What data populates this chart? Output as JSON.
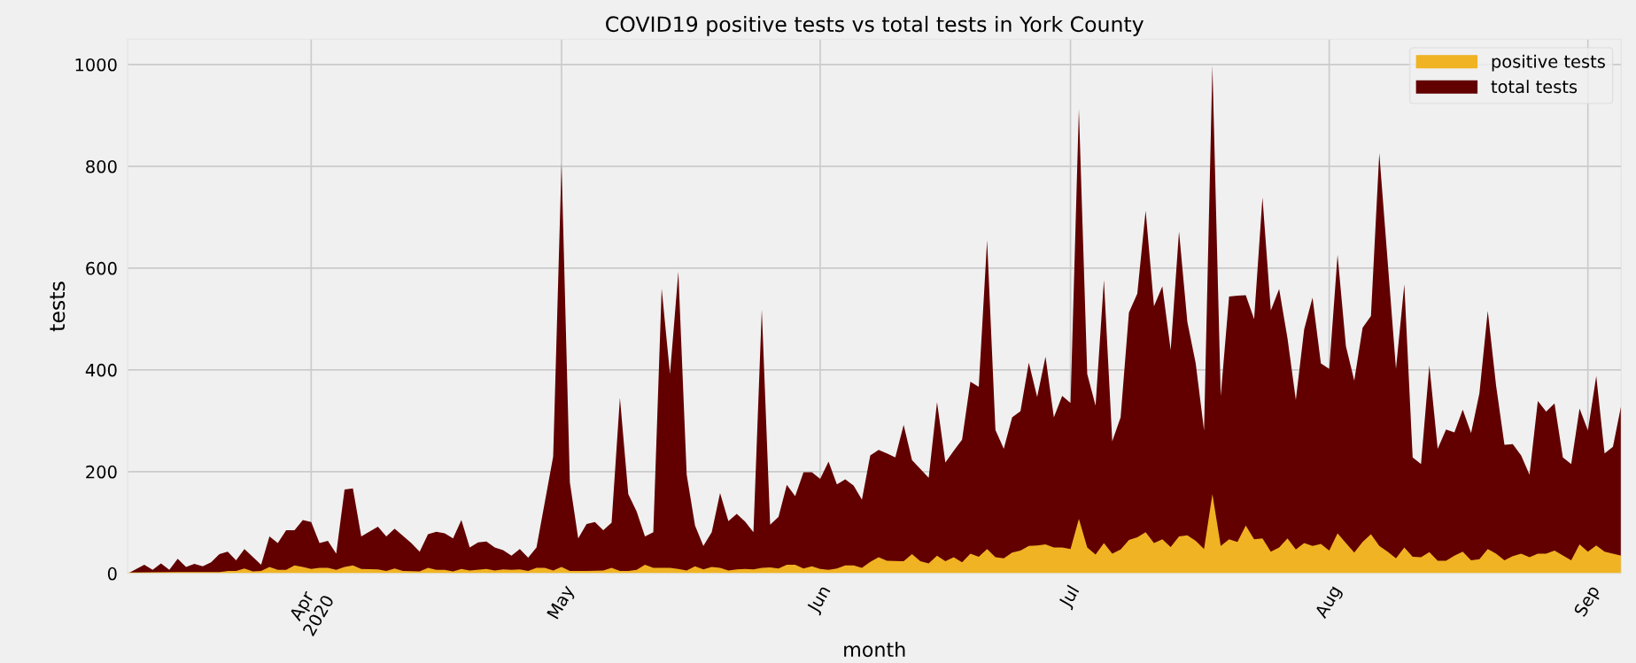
{
  "chart_data": {
    "type": "area",
    "title": "COVID19 positive tests vs total tests in York County",
    "xlabel": "month",
    "ylabel": "tests",
    "xlim": [
      "2020-03-10",
      "2020-09-05"
    ],
    "ylim": [
      0,
      1050
    ],
    "yticks": [
      0,
      200,
      400,
      600,
      800,
      1000
    ],
    "xticks": [
      {
        "value": "2020-04-01",
        "label": "Apr\n2020"
      },
      {
        "value": "2020-05-01",
        "label": "May"
      },
      {
        "value": "2020-06-01",
        "label": "Jun"
      },
      {
        "value": "2020-07-01",
        "label": "Jul"
      },
      {
        "value": "2020-08-01",
        "label": "Aug"
      },
      {
        "value": "2020-09-01",
        "label": "Sep"
      }
    ],
    "grid": true,
    "legend": "top right",
    "series": [
      {
        "name": "total tests",
        "color": "#620000",
        "x": [
          "2020-03-10",
          "2020-03-12",
          "2020-03-13",
          "2020-03-14",
          "2020-03-15",
          "2020-03-16",
          "2020-03-17",
          "2020-03-18",
          "2020-03-19",
          "2020-03-20",
          "2020-03-21",
          "2020-03-22",
          "2020-03-23",
          "2020-03-24",
          "2020-03-26",
          "2020-03-27",
          "2020-03-28",
          "2020-03-29",
          "2020-03-30",
          "2020-03-31",
          "2020-04-01",
          "2020-04-02",
          "2020-04-03",
          "2020-04-04",
          "2020-04-05",
          "2020-04-06",
          "2020-04-07",
          "2020-04-09",
          "2020-04-10",
          "2020-04-11",
          "2020-04-13",
          "2020-04-14",
          "2020-04-15",
          "2020-04-16",
          "2020-04-17",
          "2020-04-18",
          "2020-04-19",
          "2020-04-20",
          "2020-04-21",
          "2020-04-22",
          "2020-04-23",
          "2020-04-24",
          "2020-04-25",
          "2020-04-26",
          "2020-04-27",
          "2020-04-28",
          "2020-04-30",
          "2020-05-01",
          "2020-05-02",
          "2020-05-03",
          "2020-05-04",
          "2020-05-05",
          "2020-05-06",
          "2020-05-07",
          "2020-05-08",
          "2020-05-09",
          "2020-05-10",
          "2020-05-11",
          "2020-05-12",
          "2020-05-13",
          "2020-05-14",
          "2020-05-15",
          "2020-05-16",
          "2020-05-17",
          "2020-05-18",
          "2020-05-19",
          "2020-05-20",
          "2020-05-21",
          "2020-05-22",
          "2020-05-23",
          "2020-05-24",
          "2020-05-25",
          "2020-05-26",
          "2020-05-27",
          "2020-05-28",
          "2020-05-29",
          "2020-05-30",
          "2020-05-31",
          "2020-06-01",
          "2020-06-02",
          "2020-06-03",
          "2020-06-04",
          "2020-06-05",
          "2020-06-06",
          "2020-06-07",
          "2020-06-08",
          "2020-06-09",
          "2020-06-10",
          "2020-06-11",
          "2020-06-12",
          "2020-06-14",
          "2020-06-15",
          "2020-06-16",
          "2020-06-17",
          "2020-06-18",
          "2020-06-19",
          "2020-06-20",
          "2020-06-21",
          "2020-06-22",
          "2020-06-23",
          "2020-06-24",
          "2020-06-25",
          "2020-06-26",
          "2020-06-27",
          "2020-06-28",
          "2020-06-29",
          "2020-06-30",
          "2020-07-01",
          "2020-07-02",
          "2020-07-03",
          "2020-07-04",
          "2020-07-05",
          "2020-07-06",
          "2020-07-07",
          "2020-07-08",
          "2020-07-09",
          "2020-07-10",
          "2020-07-11",
          "2020-07-12",
          "2020-07-13",
          "2020-07-14",
          "2020-07-15",
          "2020-07-16",
          "2020-07-17",
          "2020-07-18",
          "2020-07-19",
          "2020-07-20",
          "2020-07-21",
          "2020-07-22",
          "2020-07-23",
          "2020-07-24",
          "2020-07-25",
          "2020-07-26",
          "2020-07-27",
          "2020-07-28",
          "2020-07-29",
          "2020-07-30",
          "2020-07-31",
          "2020-08-01",
          "2020-08-02",
          "2020-08-03",
          "2020-08-04",
          "2020-08-05",
          "2020-08-06",
          "2020-08-07",
          "2020-08-09",
          "2020-08-10",
          "2020-08-11",
          "2020-08-12",
          "2020-08-13",
          "2020-08-14",
          "2020-08-15",
          "2020-08-16",
          "2020-08-17",
          "2020-08-18",
          "2020-08-19",
          "2020-08-20",
          "2020-08-21",
          "2020-08-22",
          "2020-08-23",
          "2020-08-24",
          "2020-08-25",
          "2020-08-26",
          "2020-08-27",
          "2020-08-28",
          "2020-08-29",
          "2020-08-30",
          "2020-08-31",
          "2020-09-01",
          "2020-09-02",
          "2020-09-03",
          "2020-09-04",
          "2020-09-05"
        ],
        "values": [
          0,
          17,
          7,
          20,
          7,
          29,
          13,
          19,
          14,
          22,
          38,
          43,
          26,
          48,
          17,
          73,
          60,
          85,
          85,
          105,
          101,
          60,
          64,
          39,
          165,
          167,
          73,
          92,
          73,
          88,
          60,
          43,
          77,
          82,
          79,
          69,
          105,
          51,
          61,
          63,
          51,
          46,
          35,
          48,
          31,
          51,
          230,
          806,
          179,
          69,
          97,
          101,
          85,
          100,
          345,
          156,
          122,
          73,
          81,
          560,
          392,
          593,
          194,
          94,
          54,
          81,
          158,
          103,
          117,
          102,
          81,
          519,
          96,
          111,
          174,
          152,
          199,
          199,
          186,
          220,
          175,
          185,
          173,
          145,
          232,
          243,
          236,
          228,
          292,
          223,
          188,
          337,
          218,
          241,
          263,
          377,
          367,
          655,
          282,
          245,
          307,
          319,
          414,
          347,
          426,
          307,
          349,
          335,
          913,
          392,
          330,
          577,
          260,
          307,
          513,
          550,
          713,
          525,
          564,
          439,
          672,
          494,
          413,
          281,
          998,
          349,
          544,
          546,
          547,
          500,
          739,
          517,
          559,
          462,
          341,
          480,
          542,
          413,
          402,
          626,
          447,
          379,
          483,
          506,
          826,
          402,
          568,
          228,
          215,
          409,
          245,
          283,
          277,
          322,
          276,
          354,
          516,
          369,
          253,
          254,
          232,
          194,
          339,
          318,
          334,
          228,
          215,
          324,
          281,
          388,
          236,
          249,
          331
        ]
      },
      {
        "name": "positive tests",
        "color": "#f0b323",
        "x": [
          "2020-03-10",
          "2020-03-16",
          "2020-03-21",
          "2020-03-22",
          "2020-03-23",
          "2020-03-24",
          "2020-03-25",
          "2020-03-26",
          "2020-03-27",
          "2020-03-28",
          "2020-03-29",
          "2020-03-30",
          "2020-03-31",
          "2020-04-01",
          "2020-04-02",
          "2020-04-03",
          "2020-04-04",
          "2020-04-05",
          "2020-04-06",
          "2020-04-07",
          "2020-04-09",
          "2020-04-10",
          "2020-04-11",
          "2020-04-12",
          "2020-04-14",
          "2020-04-15",
          "2020-04-16",
          "2020-04-17",
          "2020-04-18",
          "2020-04-19",
          "2020-04-20",
          "2020-04-22",
          "2020-04-23",
          "2020-04-24",
          "2020-04-25",
          "2020-04-26",
          "2020-04-27",
          "2020-04-28",
          "2020-04-29",
          "2020-04-30",
          "2020-05-01",
          "2020-05-02",
          "2020-05-04",
          "2020-05-06",
          "2020-05-07",
          "2020-05-08",
          "2020-05-09",
          "2020-05-10",
          "2020-05-11",
          "2020-05-12",
          "2020-05-14",
          "2020-05-15",
          "2020-05-16",
          "2020-05-17",
          "2020-05-18",
          "2020-05-19",
          "2020-05-20",
          "2020-05-21",
          "2020-05-22",
          "2020-05-23",
          "2020-05-24",
          "2020-05-25",
          "2020-05-26",
          "2020-05-27",
          "2020-05-28",
          "2020-05-29",
          "2020-05-30",
          "2020-05-31",
          "2020-06-01",
          "2020-06-02",
          "2020-06-03",
          "2020-06-04",
          "2020-06-05",
          "2020-06-06",
          "2020-06-07",
          "2020-06-08",
          "2020-06-09",
          "2020-06-11",
          "2020-06-12",
          "2020-06-13",
          "2020-06-14",
          "2020-06-15",
          "2020-06-16",
          "2020-06-17",
          "2020-06-18",
          "2020-06-19",
          "2020-06-20",
          "2020-06-21",
          "2020-06-22",
          "2020-06-23",
          "2020-06-24",
          "2020-06-25",
          "2020-06-26",
          "2020-06-27",
          "2020-06-28",
          "2020-06-29",
          "2020-06-30",
          "2020-07-01",
          "2020-07-02",
          "2020-07-03",
          "2020-07-04",
          "2020-07-05",
          "2020-07-06",
          "2020-07-07",
          "2020-07-08",
          "2020-07-09",
          "2020-07-10",
          "2020-07-11",
          "2020-07-12",
          "2020-07-13",
          "2020-07-14",
          "2020-07-15",
          "2020-07-16",
          "2020-07-17",
          "2020-07-18",
          "2020-07-19",
          "2020-07-20",
          "2020-07-21",
          "2020-07-22",
          "2020-07-23",
          "2020-07-24",
          "2020-07-25",
          "2020-07-26",
          "2020-07-27",
          "2020-07-28",
          "2020-07-29",
          "2020-07-30",
          "2020-07-31",
          "2020-08-01",
          "2020-08-02",
          "2020-08-03",
          "2020-08-04",
          "2020-08-05",
          "2020-08-06",
          "2020-08-07",
          "2020-08-08",
          "2020-08-09",
          "2020-08-10",
          "2020-08-11",
          "2020-08-12",
          "2020-08-13",
          "2020-08-14",
          "2020-08-15",
          "2020-08-16",
          "2020-08-17",
          "2020-08-18",
          "2020-08-19",
          "2020-08-20",
          "2020-08-21",
          "2020-08-22",
          "2020-08-23",
          "2020-08-24",
          "2020-08-25",
          "2020-08-26",
          "2020-08-27",
          "2020-08-28",
          "2020-08-30",
          "2020-08-31",
          "2020-09-01",
          "2020-09-02",
          "2020-09-03",
          "2020-09-05"
        ],
        "values": [
          2,
          3,
          3,
          5,
          5,
          10,
          4,
          5,
          13,
          7,
          7,
          16,
          13,
          9,
          11,
          11,
          7,
          13,
          16,
          9,
          8,
          5,
          10,
          5,
          4,
          11,
          7,
          7,
          4,
          9,
          6,
          9,
          6,
          8,
          7,
          8,
          5,
          11,
          11,
          6,
          13,
          5,
          5,
          6,
          11,
          5,
          5,
          7,
          17,
          11,
          11,
          9,
          6,
          14,
          8,
          13,
          11,
          6,
          8,
          9,
          8,
          11,
          12,
          10,
          17,
          17,
          10,
          14,
          9,
          7,
          10,
          16,
          16,
          11,
          23,
          32,
          25,
          24,
          38,
          24,
          20,
          35,
          24,
          32,
          22,
          39,
          33,
          48,
          32,
          30,
          41,
          45,
          54,
          55,
          57,
          51,
          51,
          48,
          107,
          51,
          37,
          60,
          39,
          47,
          66,
          71,
          81,
          60,
          67,
          52,
          73,
          75,
          64,
          48,
          156,
          54,
          67,
          62,
          94,
          67,
          69,
          43,
          51,
          69,
          47,
          60,
          54,
          58,
          45,
          79,
          60,
          41,
          62,
          77,
          54,
          43,
          30,
          51,
          33,
          32,
          42,
          25,
          25,
          35,
          43,
          26,
          28,
          48,
          39,
          26,
          34,
          39,
          32,
          39,
          39,
          45,
          26,
          57,
          43,
          55,
          43,
          35
        ]
      }
    ]
  }
}
